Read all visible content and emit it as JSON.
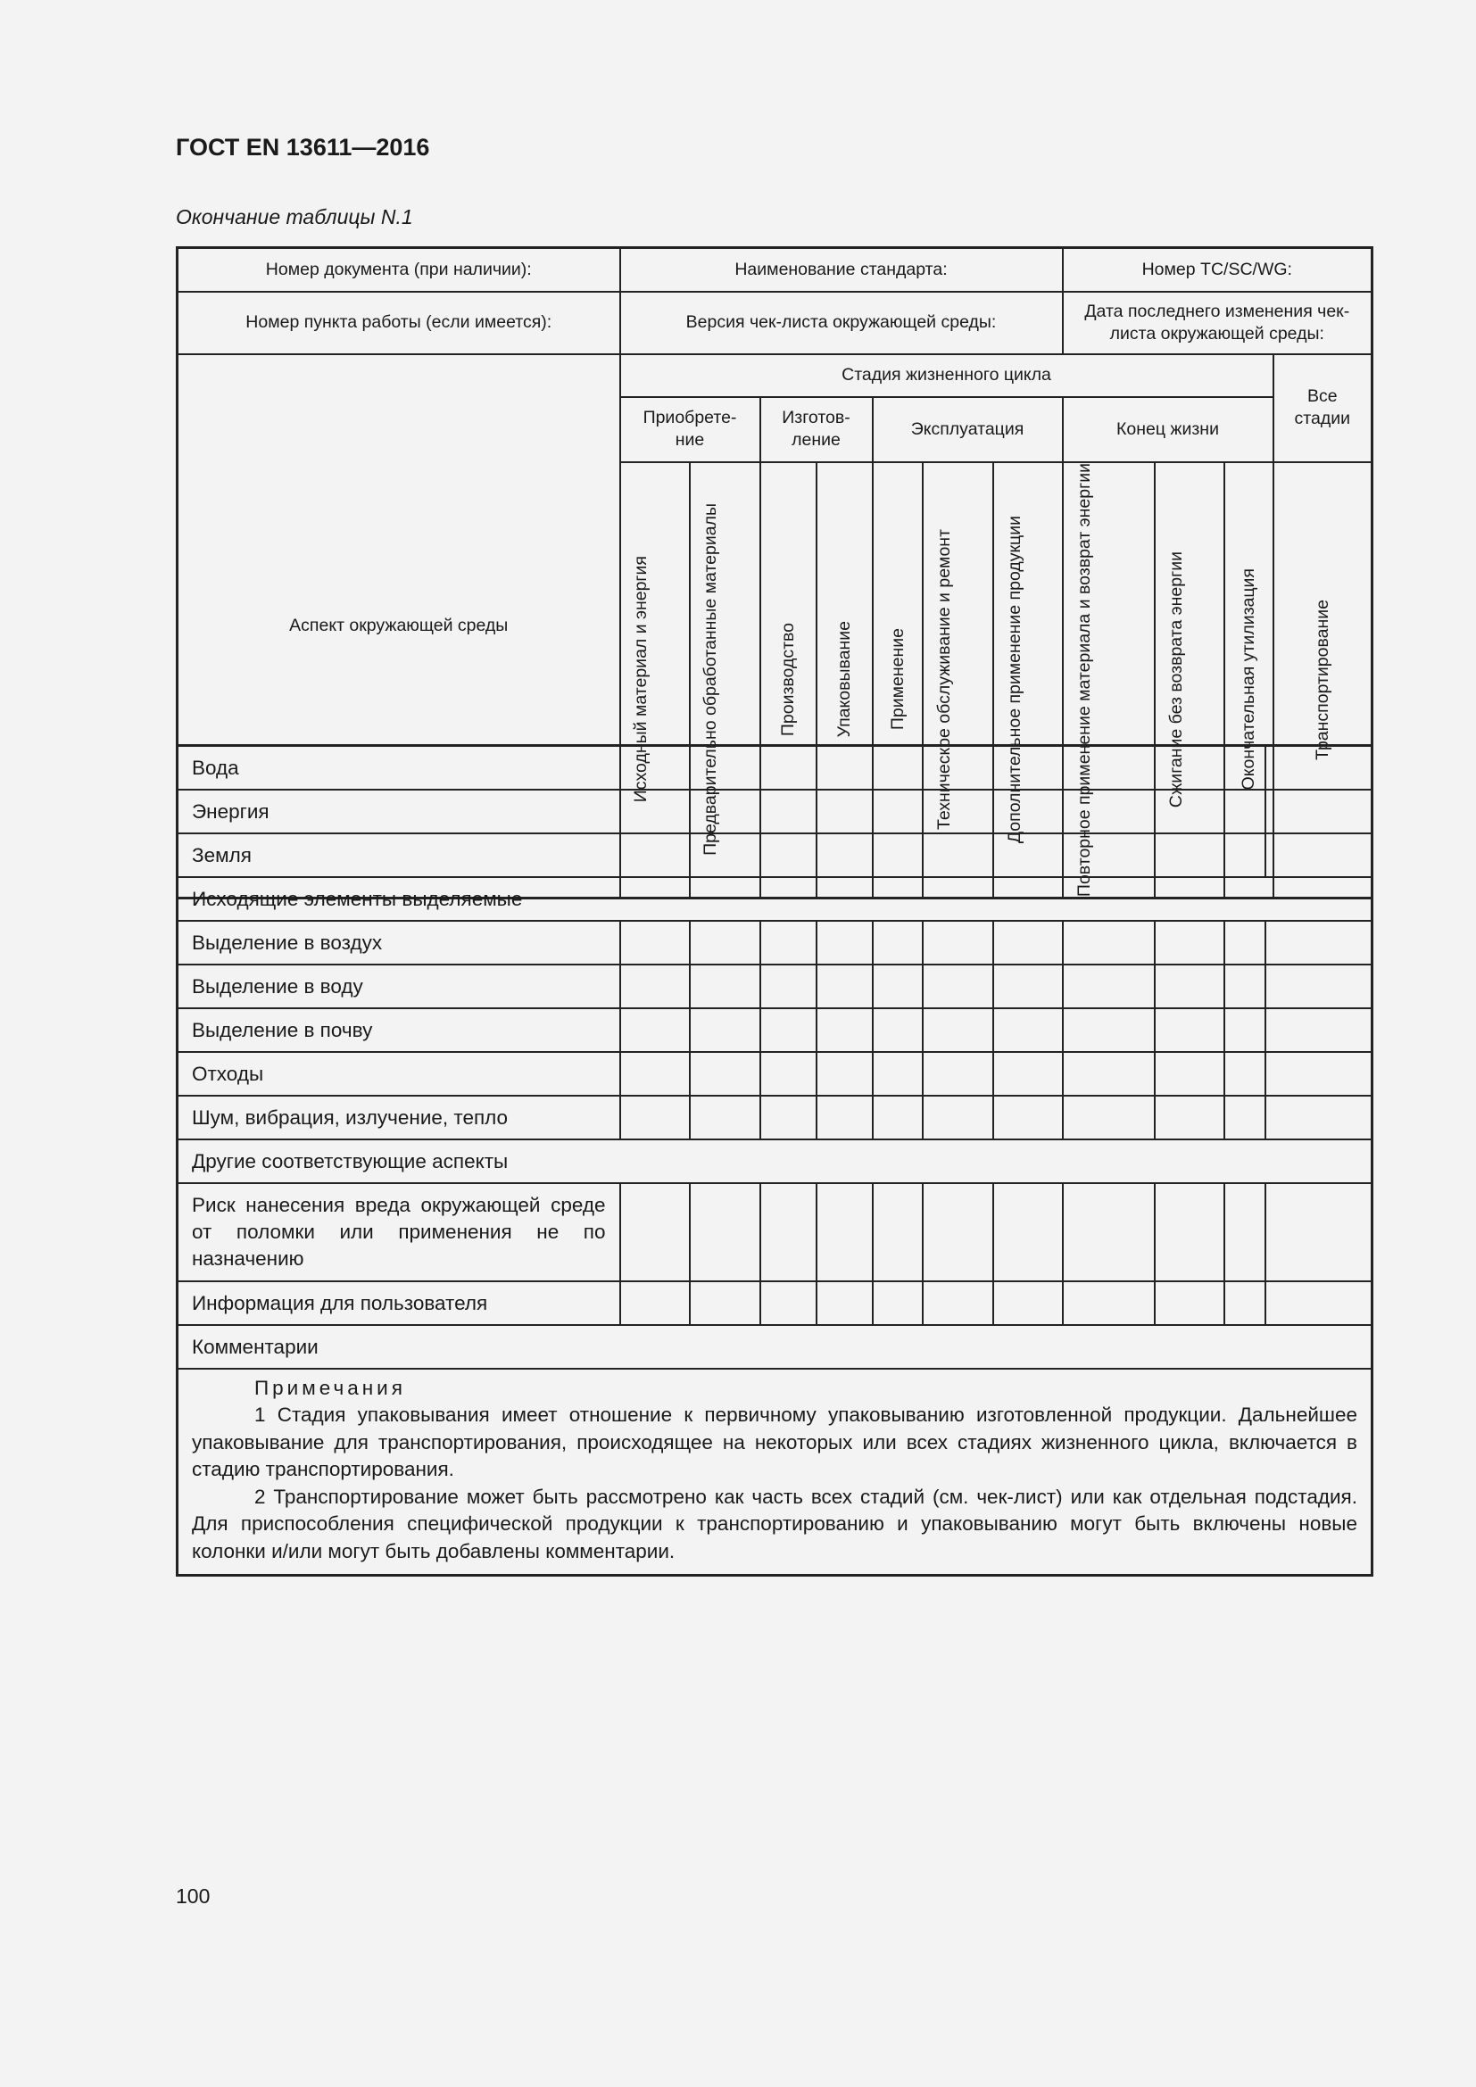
{
  "header": {
    "doc_title": "ГОСТ EN 13611—2016",
    "subtitle": "Окончание таблицы N.1"
  },
  "table": {
    "meta": {
      "doc_number": "Номер документа (при наличии):",
      "standard_name": "Наименование стандарта:",
      "tc_number": "Номер TC/SC/WG:",
      "work_item": "Номер пункта работы (если имеется):",
      "checklist_version": "Версия чек-листа окружающей среды:",
      "last_change": "Дата последнего изменения чек-листа окружающей среды:"
    },
    "aspect_header": "Аспект окружающей среды",
    "lifecycle_header": "Стадия жизненного цикла",
    "all_stages": "Все стадии",
    "groups": [
      "Приобрете-ние",
      "Изготов-ление",
      "Эксплуатация",
      "Конец жизни"
    ],
    "columns": [
      "Исходный материал и энергия",
      "Предварительно обработанные материалы",
      "Производство",
      "Упаковывание",
      "Применение",
      "Техническое обслуживание и ремонт",
      "Дополнительное применение продукции",
      "Повторное применение материала и возврат энергии",
      "Сжигание без возврата энергии",
      "Окончательная утилизация",
      "Транспортирование"
    ],
    "rows": [
      {
        "label": "Вода",
        "type": "row"
      },
      {
        "label": "Энергия",
        "type": "row"
      },
      {
        "label": "Земля",
        "type": "row"
      },
      {
        "label": "Исходящие элементы выделяемые",
        "type": "section"
      },
      {
        "label": "Выделение в воздух",
        "type": "row"
      },
      {
        "label": "Выделение в воду",
        "type": "row"
      },
      {
        "label": "Выделение в почву",
        "type": "row"
      },
      {
        "label": "Отходы",
        "type": "row"
      },
      {
        "label": "Шум, вибрация, излучение, тепло",
        "type": "row"
      },
      {
        "label": "Другие соответствующие аспекты",
        "type": "section"
      },
      {
        "label": "Риск нанесения вреда окружающей среде от поломки или применения не по назначению",
        "type": "tall"
      },
      {
        "label": "Информация для пользователя",
        "type": "row"
      },
      {
        "label": "Комментарии",
        "type": "section"
      }
    ],
    "notes": {
      "heading": "Примечания",
      "items": [
        "1 Стадия упаковывания имеет отношение к первичному упаковыванию изготовленной продукции. Дальнейшее упаковывание для транспортирования, происходящее на некоторых или всех стадиях жизненного цикла, включается в стадию транспортирования.",
        "2 Транспортирование может быть рассмотрено как часть всех стадий (см. чек-лист) или как отдельная подстадия. Для приспособления специфической продукции к транспортированию и упаковыванию могут быть включены новые колонки и/или могут быть добавлены комментарии."
      ]
    }
  },
  "footer": {
    "page_number": "100"
  }
}
